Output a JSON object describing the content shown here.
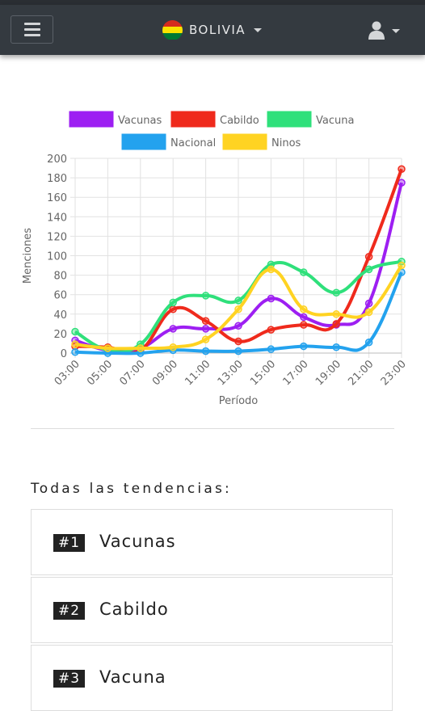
{
  "navbar": {
    "country": "BOLIVIA"
  },
  "chart_data": {
    "type": "line",
    "categories": [
      "03:00",
      "05:00",
      "07:00",
      "09:00",
      "11:00",
      "13:00",
      "15:00",
      "17:00",
      "19:00",
      "21:00",
      "23:00"
    ],
    "series": [
      {
        "name": "Vacunas",
        "color": "#9d1ff2",
        "values": [
          13,
          3,
          5,
          25,
          25,
          28,
          56,
          37,
          29,
          51,
          175
        ]
      },
      {
        "name": "Cabildo",
        "color": "#ef2a1c",
        "values": [
          7,
          6,
          3,
          45,
          33,
          12,
          24,
          29,
          30,
          99,
          189
        ]
      },
      {
        "name": "Vacuna",
        "color": "#2fe07b",
        "values": [
          22,
          3,
          9,
          52,
          59,
          54,
          91,
          83,
          62,
          86,
          94
        ]
      },
      {
        "name": "Nacional",
        "color": "#23a2ee",
        "values": [
          1,
          0,
          0,
          3,
          2,
          2,
          4,
          7,
          6,
          11,
          83
        ]
      },
      {
        "name": "Ninos",
        "color": "#ffd322",
        "values": [
          9,
          5,
          5,
          6,
          14,
          45,
          86,
          45,
          40,
          42,
          90
        ]
      }
    ],
    "ylim": [
      0,
      200
    ],
    "yticks": [
      0,
      20,
      40,
      60,
      80,
      100,
      120,
      140,
      160,
      180,
      200
    ],
    "xlabel": "Período",
    "ylabel": "Menciones",
    "grid": true,
    "legend": "top"
  },
  "trends": {
    "title": "Todas las tendencias:",
    "items": [
      {
        "rank": "#1",
        "name": "Vacunas"
      },
      {
        "rank": "#2",
        "name": "Cabildo"
      },
      {
        "rank": "#3",
        "name": "Vacuna"
      }
    ]
  }
}
